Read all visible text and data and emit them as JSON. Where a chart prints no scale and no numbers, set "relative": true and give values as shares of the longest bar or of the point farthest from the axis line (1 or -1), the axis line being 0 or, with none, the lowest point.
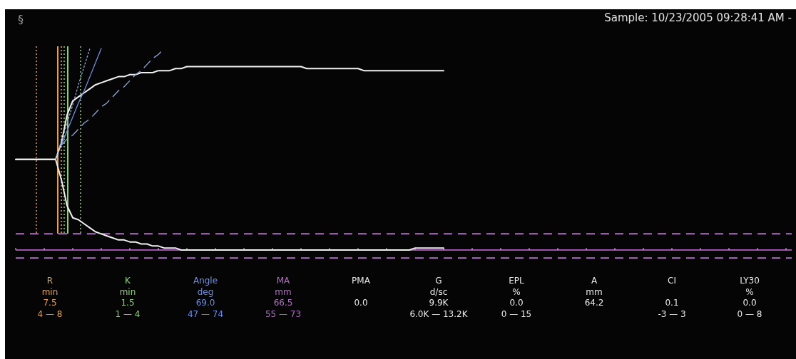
{
  "chart_data": {
    "type": "line",
    "relative": true,
    "title": "Sample: 10/23/2005 09:28:41 AM -",
    "categories": [
      null,
      null,
      null,
      null,
      null,
      null,
      null,
      null,
      null,
      null,
      null,
      null,
      null,
      null,
      null,
      null,
      null,
      null,
      null,
      null,
      null,
      null,
      null,
      null,
      null,
      null,
      null,
      null,
      null,
      null,
      null,
      null,
      null,
      null,
      null,
      null,
      null,
      null,
      null,
      null,
      null,
      null,
      null,
      null,
      null,
      null,
      null,
      null,
      null,
      null,
      null,
      null,
      null,
      null,
      null,
      null,
      null,
      null,
      null,
      null,
      null,
      null,
      null,
      null,
      null,
      null,
      null,
      null,
      null,
      null,
      null,
      null,
      null,
      null,
      null,
      null,
      null,
      null,
      null,
      null,
      null,
      null,
      null,
      null,
      null,
      null,
      null,
      null,
      null,
      null,
      null,
      null,
      null,
      null,
      null,
      null,
      null,
      null,
      null,
      null,
      null,
      null,
      null,
      null,
      null,
      null,
      null,
      null,
      null,
      null,
      null,
      null,
      null,
      null,
      null,
      null,
      null,
      null,
      null,
      null,
      null,
      null,
      null,
      null,
      null,
      null,
      null,
      null,
      null,
      null,
      null,
      null,
      null,
      null,
      null,
      null,
      null
    ],
    "series": [
      {
        "color": "#f0f0f0",
        "values": [
          0.45,
          0.45,
          0.45,
          0.45,
          0.45,
          0.45,
          0.45,
          0.45,
          0.53,
          0.67,
          0.74,
          0.76,
          0.78,
          0.8,
          0.82,
          0.83,
          0.84,
          0.85,
          0.86,
          0.86,
          0.87,
          0.87,
          0.88,
          0.88,
          0.88,
          0.89,
          0.89,
          0.89,
          0.9,
          0.9,
          0.91,
          0.91,
          0.91,
          0.91,
          0.91,
          0.91,
          0.91,
          0.91,
          0.91,
          0.91,
          0.91,
          0.91,
          0.91,
          0.91,
          0.91,
          0.91,
          0.91,
          0.91,
          0.91,
          0.91,
          0.91,
          0.9,
          0.9,
          0.9,
          0.9,
          0.9,
          0.9,
          0.9,
          0.9,
          0.9,
          0.9,
          0.89,
          0.89,
          0.89,
          0.89,
          0.89,
          0.89,
          0.89,
          0.89,
          0.89,
          0.89,
          0.89,
          0.89,
          0.89,
          0.89,
          0.89,
          null,
          null,
          null,
          null,
          null,
          null,
          null,
          null,
          null,
          null,
          null,
          null,
          null,
          null,
          null,
          null,
          null,
          null,
          null,
          null,
          null,
          null,
          null,
          null,
          null,
          null,
          null,
          null,
          null,
          null,
          null,
          null,
          null,
          null,
          null,
          null,
          null,
          null,
          null,
          null,
          null,
          null,
          null,
          null,
          null,
          null,
          null,
          null,
          null,
          null,
          null,
          null,
          null,
          null,
          null,
          null,
          null,
          null,
          null,
          null,
          null
        ]
      },
      {
        "color": "#f0f0f0",
        "values": [
          0.45,
          0.45,
          0.45,
          0.45,
          0.45,
          0.45,
          0.45,
          0.45,
          0.35,
          0.22,
          0.16,
          0.15,
          0.13,
          0.11,
          0.09,
          0.08,
          0.07,
          0.06,
          0.05,
          0.05,
          0.04,
          0.04,
          0.03,
          0.03,
          0.02,
          0.02,
          0.01,
          0.01,
          0.01,
          0,
          0,
          0,
          0,
          0,
          0,
          0,
          0,
          0,
          0,
          0,
          0,
          0,
          0,
          0,
          0,
          0,
          0,
          0,
          0,
          0,
          0,
          0,
          0,
          0,
          0,
          0,
          0,
          0,
          0,
          0,
          0,
          0,
          0,
          0,
          0,
          0,
          0,
          0,
          0,
          0,
          0.01,
          0.01,
          0.01,
          0.01,
          0.01,
          0.01,
          null,
          null,
          null,
          null,
          null,
          null,
          null,
          null,
          null,
          null,
          null,
          null,
          null,
          null,
          null,
          null,
          null,
          null,
          null,
          null,
          null,
          null,
          null,
          null,
          null,
          null,
          null,
          null,
          null,
          null,
          null,
          null,
          null,
          null,
          null,
          null,
          null,
          null,
          null,
          null,
          null,
          null,
          null,
          null,
          null,
          null,
          null,
          null,
          null,
          null,
          null,
          null,
          null,
          null,
          null,
          null,
          null,
          null,
          null,
          null,
          null
        ]
      },
      {
        "color": "#6e8ee0",
        "line_style": "solid",
        "values": [
          null,
          null,
          null,
          null,
          null,
          null,
          null,
          null,
          0.52,
          0.59,
          0.66,
          0.73,
          0.79,
          0.86,
          0.93,
          1.0,
          null,
          null,
          null,
          null,
          null,
          null,
          null,
          null,
          null,
          null,
          null,
          null,
          null,
          null,
          null,
          null,
          null,
          null,
          null,
          null,
          null,
          null,
          null,
          null,
          null,
          null,
          null,
          null,
          null,
          null,
          null,
          null,
          null,
          null,
          null,
          null,
          null,
          null,
          null,
          null,
          null,
          null,
          null,
          null,
          null,
          null,
          null,
          null,
          null,
          null,
          null,
          null,
          null,
          null,
          null,
          null,
          null,
          null,
          null,
          null,
          null,
          null,
          null,
          null,
          null,
          null,
          null,
          null,
          null,
          null,
          null,
          null,
          null,
          null,
          null,
          null,
          null,
          null,
          null,
          null,
          null,
          null,
          null,
          null,
          null,
          null,
          null,
          null,
          null,
          null,
          null,
          null,
          null,
          null,
          null,
          null,
          null,
          null,
          null,
          null,
          null,
          null,
          null,
          null,
          null,
          null,
          null,
          null,
          null,
          null,
          null,
          null,
          null,
          null,
          null,
          null,
          null,
          null,
          null,
          null,
          null
        ]
      },
      {
        "color": "#8fa8d8",
        "line_style": "dotted",
        "values": [
          null,
          null,
          null,
          null,
          null,
          null,
          null,
          0.45,
          0.54,
          0.63,
          0.72,
          0.82,
          0.91,
          1.0,
          null,
          null,
          null,
          null,
          null,
          null,
          null,
          null,
          null,
          null,
          null,
          null,
          null,
          null,
          null,
          null,
          null,
          null,
          null,
          null,
          null,
          null,
          null,
          null,
          null,
          null,
          null,
          null,
          null,
          null,
          null,
          null,
          null,
          null,
          null,
          null,
          null,
          null,
          null,
          null,
          null,
          null,
          null,
          null,
          null,
          null,
          null,
          null,
          null,
          null,
          null,
          null,
          null,
          null,
          null,
          null,
          null,
          null,
          null,
          null,
          null,
          null,
          null,
          null,
          null,
          null,
          null,
          null,
          null,
          null,
          null,
          null,
          null,
          null,
          null,
          null,
          null,
          null,
          null,
          null,
          null,
          null,
          null,
          null,
          null,
          null,
          null,
          null,
          null,
          null,
          null,
          null,
          null,
          null,
          null,
          null,
          null,
          null,
          null,
          null,
          null,
          null,
          null,
          null,
          null,
          null,
          null,
          null,
          null,
          null,
          null,
          null,
          null,
          null,
          null,
          null,
          null,
          null,
          null,
          null,
          null,
          null,
          null
        ]
      },
      {
        "color": "#8fa8d8",
        "line_style": "dashed",
        "values": [
          null,
          null,
          null,
          null,
          null,
          null,
          null,
          null,
          0.52,
          0.55,
          0.57,
          0.6,
          0.63,
          0.65,
          0.68,
          0.71,
          0.73,
          0.76,
          0.79,
          0.81,
          0.84,
          0.87,
          0.89,
          0.92,
          0.95,
          0.97,
          1.0,
          null,
          null,
          null,
          null,
          null,
          null,
          null,
          null,
          null,
          null,
          null,
          null,
          null,
          null,
          null,
          null,
          null,
          null,
          null,
          null,
          null,
          null,
          null,
          null,
          null,
          null,
          null,
          null,
          null,
          null,
          null,
          null,
          null,
          null,
          null,
          null,
          null,
          null,
          null,
          null,
          null,
          null,
          null,
          null,
          null,
          null,
          null,
          null,
          null,
          null,
          null,
          null,
          null,
          null,
          null,
          null,
          null,
          null,
          null,
          null,
          null,
          null,
          null,
          null,
          null,
          null,
          null,
          null,
          null,
          null,
          null,
          null,
          null,
          null,
          null,
          null,
          null,
          null,
          null,
          null,
          null,
          null,
          null,
          null,
          null,
          null,
          null,
          null,
          null,
          null,
          null,
          null,
          null,
          null,
          null,
          null,
          null,
          null,
          null,
          null,
          null,
          null,
          null,
          null,
          null,
          null,
          null,
          null,
          null,
          null
        ]
      }
    ],
    "ref_lines": [
      {
        "axis": "y",
        "value": 0.08,
        "color": "#b070c0",
        "line_style": "dashed"
      },
      {
        "axis": "y",
        "value": -0.04,
        "color": "#b070c0",
        "line_style": "dashed"
      }
    ],
    "annotations": [
      "§",
      "R\nmin\n7.5\n4 — 8",
      "K\nmin\n1.5\n1 — 4",
      "Angle\ndeg\n69.0\n47 — 74",
      "MA\nmm\n66.5\n55 — 73",
      "PMA\n\n0.0",
      "G\nd/sc\n9.9K\n6.0K — 13.2K",
      "EPL\n%\n0.0\n0 — 15",
      "A\nmm\n64.2",
      "CI\n\n0.1\n-3 — 3",
      "LY30\n%\n0.0\n0 — 8"
    ]
  }
}
